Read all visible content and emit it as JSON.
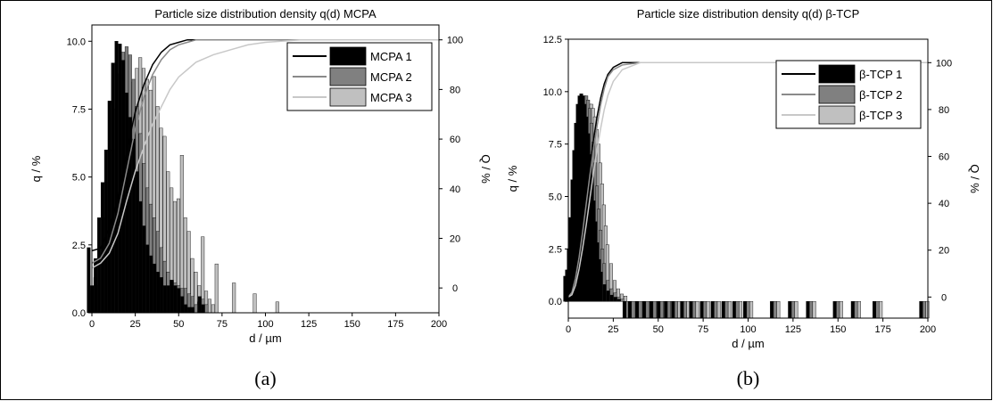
{
  "chart_data": [
    {
      "type": "bar",
      "title": "Particle size distribution density q(d) MCPA",
      "xlabel": "d / µm",
      "ylabel": "q / %",
      "y2label": "Q / %",
      "xlim": [
        0,
        200
      ],
      "ylim": [
        0,
        10.6
      ],
      "y2lim": [
        -10,
        106
      ],
      "xticks": [
        "0",
        "25",
        "50",
        "75",
        "100",
        "125",
        "150",
        "175",
        "200"
      ],
      "yticks": [
        "0.0",
        "2.5",
        "5.0",
        "7.5",
        "10.0"
      ],
      "y2ticks": [
        "0",
        "20",
        "40",
        "60",
        "80",
        "100"
      ],
      "caption": "(a)",
      "legend_position": "top-right",
      "x": [
        0,
        2,
        4,
        6,
        8,
        10,
        12,
        14,
        16,
        18,
        20,
        22,
        24,
        26,
        28,
        30,
        32,
        34,
        36,
        38,
        40,
        42,
        44,
        46,
        48,
        50,
        52,
        54,
        56,
        58,
        60,
        62,
        64,
        66,
        68,
        70,
        80,
        92,
        105
      ],
      "series": [
        {
          "name": "MCPA 1",
          "color": "#000000",
          "line_color": "#000000",
          "values": [
            2.4,
            1.0,
            2.0,
            3.5,
            4.8,
            6.0,
            7.8,
            9.2,
            10.0,
            9.9,
            9.3,
            8.1,
            7.2,
            6.4,
            5.2,
            4.1,
            3.2,
            2.5,
            2.1,
            1.8,
            1.5,
            1.3,
            1.0,
            1.0,
            1.2,
            1.0,
            0.9,
            0.6,
            0.3,
            0.2,
            0.2,
            0.0,
            0.6,
            0.3,
            0,
            0,
            0,
            0,
            0
          ],
          "cumulative_x": [
            0,
            5,
            10,
            15,
            20,
            25,
            30,
            35,
            40,
            45,
            50,
            55,
            60,
            70,
            80,
            100,
            200
          ],
          "cumulative": [
            15,
            16,
            24,
            36,
            55,
            71,
            82,
            90,
            95,
            98,
            99,
            100,
            100,
            100,
            100,
            100,
            100
          ]
        },
        {
          "name": "MCPA 2",
          "color": "#808080",
          "line_color": "#8a8a8a",
          "values": [
            0.8,
            1.3,
            1.0,
            2.2,
            3.5,
            4.8,
            6.0,
            7.5,
            8.8,
            9.6,
            9.8,
            9.5,
            8.6,
            7.6,
            6.6,
            5.5,
            4.6,
            4.0,
            3.5,
            3.0,
            2.4,
            1.9,
            1.5,
            1.2,
            1.1,
            1.0,
            0.9,
            0.9,
            0.7,
            0.6,
            0.3,
            0.4,
            0.5,
            0.3,
            0,
            0,
            0,
            0,
            0
          ],
          "cumulative_x": [
            0,
            5,
            10,
            15,
            20,
            25,
            30,
            35,
            40,
            45,
            50,
            55,
            60,
            70,
            80,
            100,
            200
          ],
          "cumulative": [
            10,
            12,
            18,
            30,
            47,
            64,
            77,
            86,
            92,
            96,
            98,
            99,
            100,
            100,
            100,
            100,
            100
          ]
        },
        {
          "name": "MCPA 3",
          "color": "#c0c0c0",
          "line_color": "#c8c8c8",
          "values": [
            0.5,
            0.5,
            1.2,
            1.8,
            2.6,
            3.4,
            4.2,
            5.0,
            6.0,
            7.0,
            7.8,
            8.5,
            9.0,
            9.4,
            9.0,
            8.6,
            8.2,
            8.7,
            7.6,
            6.8,
            6.5,
            5.2,
            4.6,
            4.1,
            4.2,
            5.8,
            3.5,
            3.0,
            2.0,
            1.5,
            1.0,
            2.8,
            0.8,
            0.5,
            0.3,
            1.8,
            1.1,
            0.7,
            0.4
          ],
          "cumulative_x": [
            0,
            5,
            10,
            15,
            20,
            25,
            30,
            35,
            40,
            45,
            50,
            55,
            60,
            70,
            80,
            90,
            100,
            120,
            150,
            200
          ],
          "cumulative": [
            8,
            10,
            14,
            22,
            35,
            47,
            57,
            66,
            73,
            80,
            85,
            88,
            91,
            94,
            96,
            98,
            99,
            100,
            100,
            100
          ]
        }
      ]
    },
    {
      "type": "bar",
      "title": "Particle size distribution density q(d) β-TCP",
      "xlabel": "d / µm",
      "ylabel": "q / %",
      "y2label": "Q / %",
      "xlim": [
        0,
        200
      ],
      "ylim": [
        -0.8,
        12.5
      ],
      "y2lim": [
        -9,
        110
      ],
      "xticks": [
        "0",
        "25",
        "50",
        "75",
        "100",
        "125",
        "150",
        "175",
        "200"
      ],
      "yticks": [
        "0.0",
        "2.5",
        "5.0",
        "7.5",
        "10.0",
        "12.5"
      ],
      "y2ticks": [
        "0",
        "20",
        "40",
        "60",
        "80",
        "100"
      ],
      "caption": "(b)",
      "legend_position": "top-right",
      "x": [
        0,
        1,
        2,
        3,
        4,
        5,
        6,
        7,
        8,
        9,
        10,
        11,
        12,
        13,
        14,
        15,
        16,
        17,
        18,
        19,
        20,
        22,
        24,
        26,
        28,
        30,
        33,
        36,
        40,
        44,
        48,
        52,
        56,
        60,
        65,
        70,
        76,
        82,
        88,
        94,
        100,
        115,
        125,
        135,
        150,
        160,
        172,
        198
      ],
      "series": [
        {
          "name": "β-TCP 1",
          "color": "#000000",
          "line_color": "#000000",
          "values": [
            1.2,
            1.5,
            2.5,
            4.0,
            5.8,
            7.2,
            8.5,
            9.4,
            9.8,
            9.9,
            9.8,
            9.4,
            8.8,
            8.0,
            7.0,
            6.0,
            4.8,
            3.8,
            2.8,
            2.0,
            1.4,
            0.8,
            0.5,
            0.3,
            0.2,
            0.1,
            0,
            0,
            0,
            0,
            0,
            0,
            0,
            0,
            0,
            0,
            0,
            0,
            0,
            0,
            0,
            0,
            0,
            0,
            0,
            0,
            0,
            0
          ],
          "cumulative_x": [
            0,
            2,
            4,
            6,
            8,
            10,
            12,
            14,
            16,
            18,
            20,
            22,
            25,
            30,
            40,
            60,
            100,
            200
          ],
          "cumulative": [
            0,
            3,
            10,
            20,
            32,
            44,
            56,
            67,
            77,
            85,
            91,
            95,
            98,
            100,
            100,
            100,
            100,
            100
          ]
        },
        {
          "name": "β-TCP 2",
          "color": "#808080",
          "line_color": "#8a8a8a",
          "values": [
            0.8,
            1.2,
            2.0,
            3.5,
            5.2,
            6.8,
            8.0,
            9.0,
            9.6,
            9.8,
            9.8,
            9.6,
            9.2,
            8.5,
            7.6,
            6.6,
            5.5,
            4.4,
            3.4,
            2.5,
            1.8,
            1.0,
            0.6,
            0.4,
            0.2,
            0.1,
            0,
            0,
            0,
            0,
            0,
            0,
            0,
            0,
            0,
            0,
            0,
            0,
            0,
            0,
            0,
            0,
            0,
            0,
            0,
            0,
            0,
            0
          ],
          "cumulative_x": [
            0,
            2,
            4,
            6,
            8,
            10,
            12,
            14,
            16,
            18,
            20,
            22,
            25,
            30,
            40,
            60,
            100,
            200
          ],
          "cumulative": [
            0,
            2,
            8,
            17,
            28,
            40,
            52,
            63,
            73,
            82,
            89,
            94,
            97,
            99,
            100,
            100,
            100,
            100
          ]
        },
        {
          "name": "β-TCP 3",
          "color": "#c0c0c0",
          "line_color": "#c8c8c8",
          "values": [
            0.5,
            0.8,
            1.5,
            2.8,
            4.2,
            5.6,
            6.8,
            7.8,
            8.6,
            9.1,
            9.4,
            9.4,
            9.2,
            8.8,
            8.2,
            7.5,
            6.6,
            5.6,
            4.6,
            3.6,
            2.7,
            1.8,
            1.0,
            0.6,
            0.35,
            0.25,
            0,
            0,
            0,
            0,
            0,
            0,
            0,
            0,
            0,
            0,
            0,
            0,
            0,
            0,
            0,
            0,
            0,
            0,
            0,
            0,
            0,
            0
          ],
          "cumulative_x": [
            0,
            2,
            4,
            6,
            8,
            10,
            12,
            14,
            16,
            18,
            20,
            22,
            25,
            30,
            40,
            60,
            100,
            200
          ],
          "cumulative": [
            0,
            1,
            5,
            12,
            21,
            31,
            42,
            53,
            63,
            72,
            80,
            86,
            92,
            97,
            100,
            100,
            100,
            100
          ]
        }
      ]
    }
  ]
}
